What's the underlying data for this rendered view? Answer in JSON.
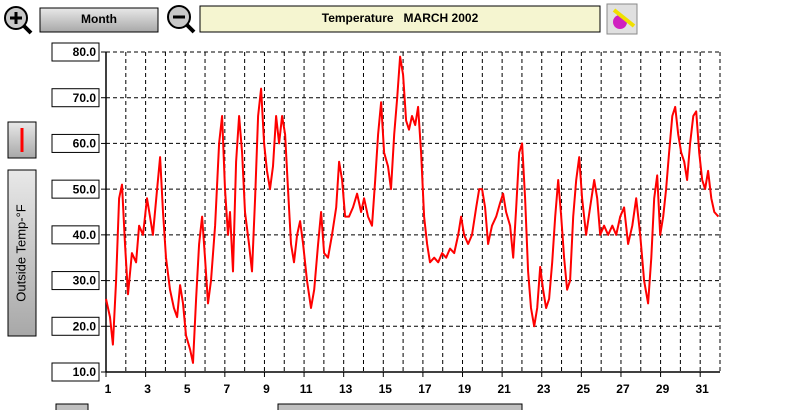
{
  "toolbar": {
    "period_button": "Month",
    "title": "Temperature   MARCH 2002"
  },
  "chart_data": {
    "type": "line",
    "ylabel": "Outside Temp-°F",
    "x": [
      1.0,
      1.2,
      1.35,
      1.51,
      1.66,
      1.81,
      1.96,
      2.11,
      2.31,
      2.52,
      2.67,
      2.87,
      3.07,
      3.22,
      3.37,
      3.58,
      3.73,
      3.88,
      4.03,
      4.23,
      4.43,
      4.59,
      4.74,
      4.89,
      5.04,
      5.24,
      5.39,
      5.55,
      5.7,
      5.85,
      6.0,
      6.15,
      6.3,
      6.51,
      6.71,
      6.86,
      7.01,
      7.16,
      7.26,
      7.41,
      7.57,
      7.72,
      7.87,
      8.02,
      8.22,
      8.37,
      8.53,
      8.68,
      8.83,
      8.98,
      9.13,
      9.28,
      9.43,
      9.59,
      9.74,
      9.89,
      10.04,
      10.19,
      10.34,
      10.49,
      10.65,
      10.8,
      10.95,
      11.15,
      11.35,
      11.51,
      11.71,
      11.86,
      12.01,
      12.21,
      12.41,
      12.62,
      12.77,
      12.92,
      13.07,
      13.27,
      13.47,
      13.68,
      13.88,
      14.03,
      14.23,
      14.43,
      14.59,
      14.74,
      14.89,
      15.04,
      15.24,
      15.39,
      15.55,
      15.7,
      15.85,
      16.0,
      16.15,
      16.3,
      16.45,
      16.61,
      16.76,
      16.91,
      17.06,
      17.21,
      17.36,
      17.57,
      17.77,
      17.97,
      18.17,
      18.37,
      18.58,
      18.78,
      18.93,
      19.08,
      19.28,
      19.48,
      19.69,
      19.84,
      19.99,
      20.14,
      20.29,
      20.49,
      20.7,
      20.9,
      21.05,
      21.2,
      21.4,
      21.56,
      21.71,
      21.86,
      22.01,
      22.16,
      22.31,
      22.46,
      22.62,
      22.77,
      22.92,
      23.07,
      23.22,
      23.37,
      23.53,
      23.68,
      23.83,
      23.98,
      24.13,
      24.28,
      24.43,
      24.59,
      24.74,
      24.89,
      25.04,
      25.24,
      25.44,
      25.65,
      25.8,
      25.95,
      26.15,
      26.35,
      26.56,
      26.76,
      26.96,
      27.16,
      27.36,
      27.57,
      27.77,
      27.97,
      28.17,
      28.37,
      28.53,
      28.68,
      28.83,
      28.98,
      29.13,
      29.28,
      29.43,
      29.59,
      29.74,
      29.89,
      30.04,
      30.19,
      30.34,
      30.49,
      30.65,
      30.8,
      30.95,
      31.1,
      31.25,
      31.4,
      31.56,
      31.71,
      31.92
    ],
    "series": [
      {
        "color": "#ff0000",
        "values": [
          26,
          22,
          16,
          30,
          48,
          51,
          38,
          27,
          36,
          34,
          42,
          40,
          48,
          44,
          40,
          50,
          57,
          45,
          35,
          28,
          24,
          22,
          29,
          25,
          18,
          15,
          12,
          26,
          38,
          44,
          35,
          25,
          30,
          42,
          60,
          66,
          50,
          40,
          45,
          32,
          56,
          66,
          58,
          45,
          38,
          32,
          48,
          66,
          72,
          60,
          54,
          50,
          55,
          66,
          60,
          66,
          62,
          50,
          38,
          34,
          40,
          43,
          38,
          30,
          24,
          28,
          38,
          45,
          36,
          35,
          40,
          46,
          56,
          52,
          44,
          44,
          46,
          49,
          45,
          48,
          44,
          42,
          52,
          62,
          69,
          58,
          55,
          50,
          62,
          70,
          79,
          75,
          65,
          63,
          66,
          64,
          68,
          58,
          44,
          38,
          34,
          35,
          34,
          36,
          35,
          37,
          36,
          40,
          44,
          40,
          38,
          40,
          46,
          50,
          50,
          46,
          38,
          42,
          44,
          47,
          49,
          45,
          42,
          35,
          46,
          58,
          60,
          48,
          32,
          24,
          20,
          24,
          33,
          28,
          24,
          26,
          34,
          44,
          52,
          44,
          35,
          28,
          30,
          44,
          52,
          57,
          48,
          40,
          46,
          52,
          48,
          40,
          42,
          40,
          42,
          40,
          44,
          46,
          38,
          42,
          48,
          40,
          30,
          25,
          35,
          48,
          53,
          40,
          44,
          50,
          58,
          66,
          68,
          62,
          58,
          56,
          52,
          60,
          66,
          67,
          58,
          52,
          50,
          54,
          48,
          45,
          44
        ]
      }
    ],
    "xlim": [
      1,
      32
    ],
    "xticks": [
      1,
      3,
      5,
      7,
      9,
      11,
      13,
      15,
      17,
      19,
      21,
      23,
      25,
      27,
      29,
      31
    ],
    "xminor_ticks": [
      2,
      4,
      6,
      8,
      10,
      12,
      14,
      16,
      18,
      20,
      22,
      24,
      26,
      28,
      30,
      32
    ],
    "ylim": [
      10,
      80
    ],
    "yticks": [
      {
        "value": 10,
        "label": "10.0"
      },
      {
        "value": 20,
        "label": "20.0"
      },
      {
        "value": 30,
        "label": "30.0"
      },
      {
        "value": 40,
        "label": "40.0"
      },
      {
        "value": 50,
        "label": "50.0"
      },
      {
        "value": 60,
        "label": "60.0"
      },
      {
        "value": 70,
        "label": "70.0"
      },
      {
        "value": 80,
        "label": "80.0"
      }
    ],
    "grid": true
  }
}
